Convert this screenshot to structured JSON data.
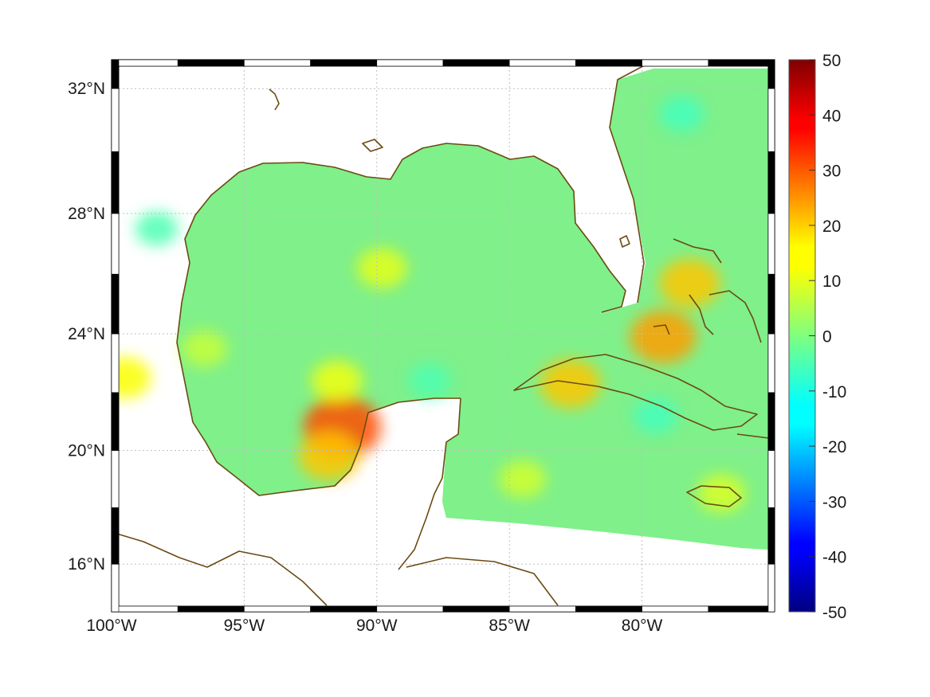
{
  "map": {
    "type": "heatmap",
    "projection": "mercator",
    "region": "Gulf of Mexico and western Caribbean",
    "lon_range": [
      -100,
      -75
    ],
    "lat_range": [
      14.3,
      32.9
    ],
    "grid": true,
    "frame_style": "alternating black-white border",
    "x_ticks": [
      {
        "lon": -100,
        "label": "100°W"
      },
      {
        "lon": -95,
        "label": "95°W"
      },
      {
        "lon": -90,
        "label": "90°W"
      },
      {
        "lon": -85,
        "label": "85°W"
      },
      {
        "lon": -80,
        "label": "80°W"
      }
    ],
    "y_ticks": [
      {
        "lat": 16,
        "label": "16°N"
      },
      {
        "lat": 20,
        "label": "20°N"
      },
      {
        "lat": 24,
        "label": "24°N"
      },
      {
        "lat": 28,
        "label": "28°N"
      },
      {
        "lat": 32,
        "label": "32°N"
      }
    ],
    "colors": {
      "coastline": "#6b4a12",
      "field_background": "#7ff08a",
      "no_data": "#ffffff"
    },
    "anomalies": [
      {
        "lon": -91.3,
        "lat": 20.8,
        "value": 30
      },
      {
        "lon": -91.8,
        "lat": 19.8,
        "value": 18
      },
      {
        "lon": -89.8,
        "lat": 26.2,
        "value": 10
      },
      {
        "lon": -91.5,
        "lat": 22.4,
        "value": 11
      },
      {
        "lon": -99.5,
        "lat": 22.5,
        "value": 12
      },
      {
        "lon": -82.7,
        "lat": 22.3,
        "value": 18
      },
      {
        "lon": -79.2,
        "lat": 23.9,
        "value": 22
      },
      {
        "lon": -78.2,
        "lat": 25.7,
        "value": 18
      },
      {
        "lon": -96.5,
        "lat": 23.5,
        "value": 7
      },
      {
        "lon": -84.5,
        "lat": 19.0,
        "value": 8
      },
      {
        "lon": -77.0,
        "lat": 18.5,
        "value": 9
      },
      {
        "lon": -78.5,
        "lat": 31.2,
        "value": -6
      },
      {
        "lon": -98.3,
        "lat": 27.5,
        "value": -5
      },
      {
        "lon": -79.5,
        "lat": 21.2,
        "value": -6
      },
      {
        "lon": -88.0,
        "lat": 22.4,
        "value": -5
      }
    ]
  },
  "colorbar": {
    "min": -50,
    "max": 50,
    "colormap": "jet",
    "ticks": [
      50,
      40,
      30,
      20,
      10,
      0,
      -10,
      -20,
      -30,
      -40,
      -50
    ]
  }
}
